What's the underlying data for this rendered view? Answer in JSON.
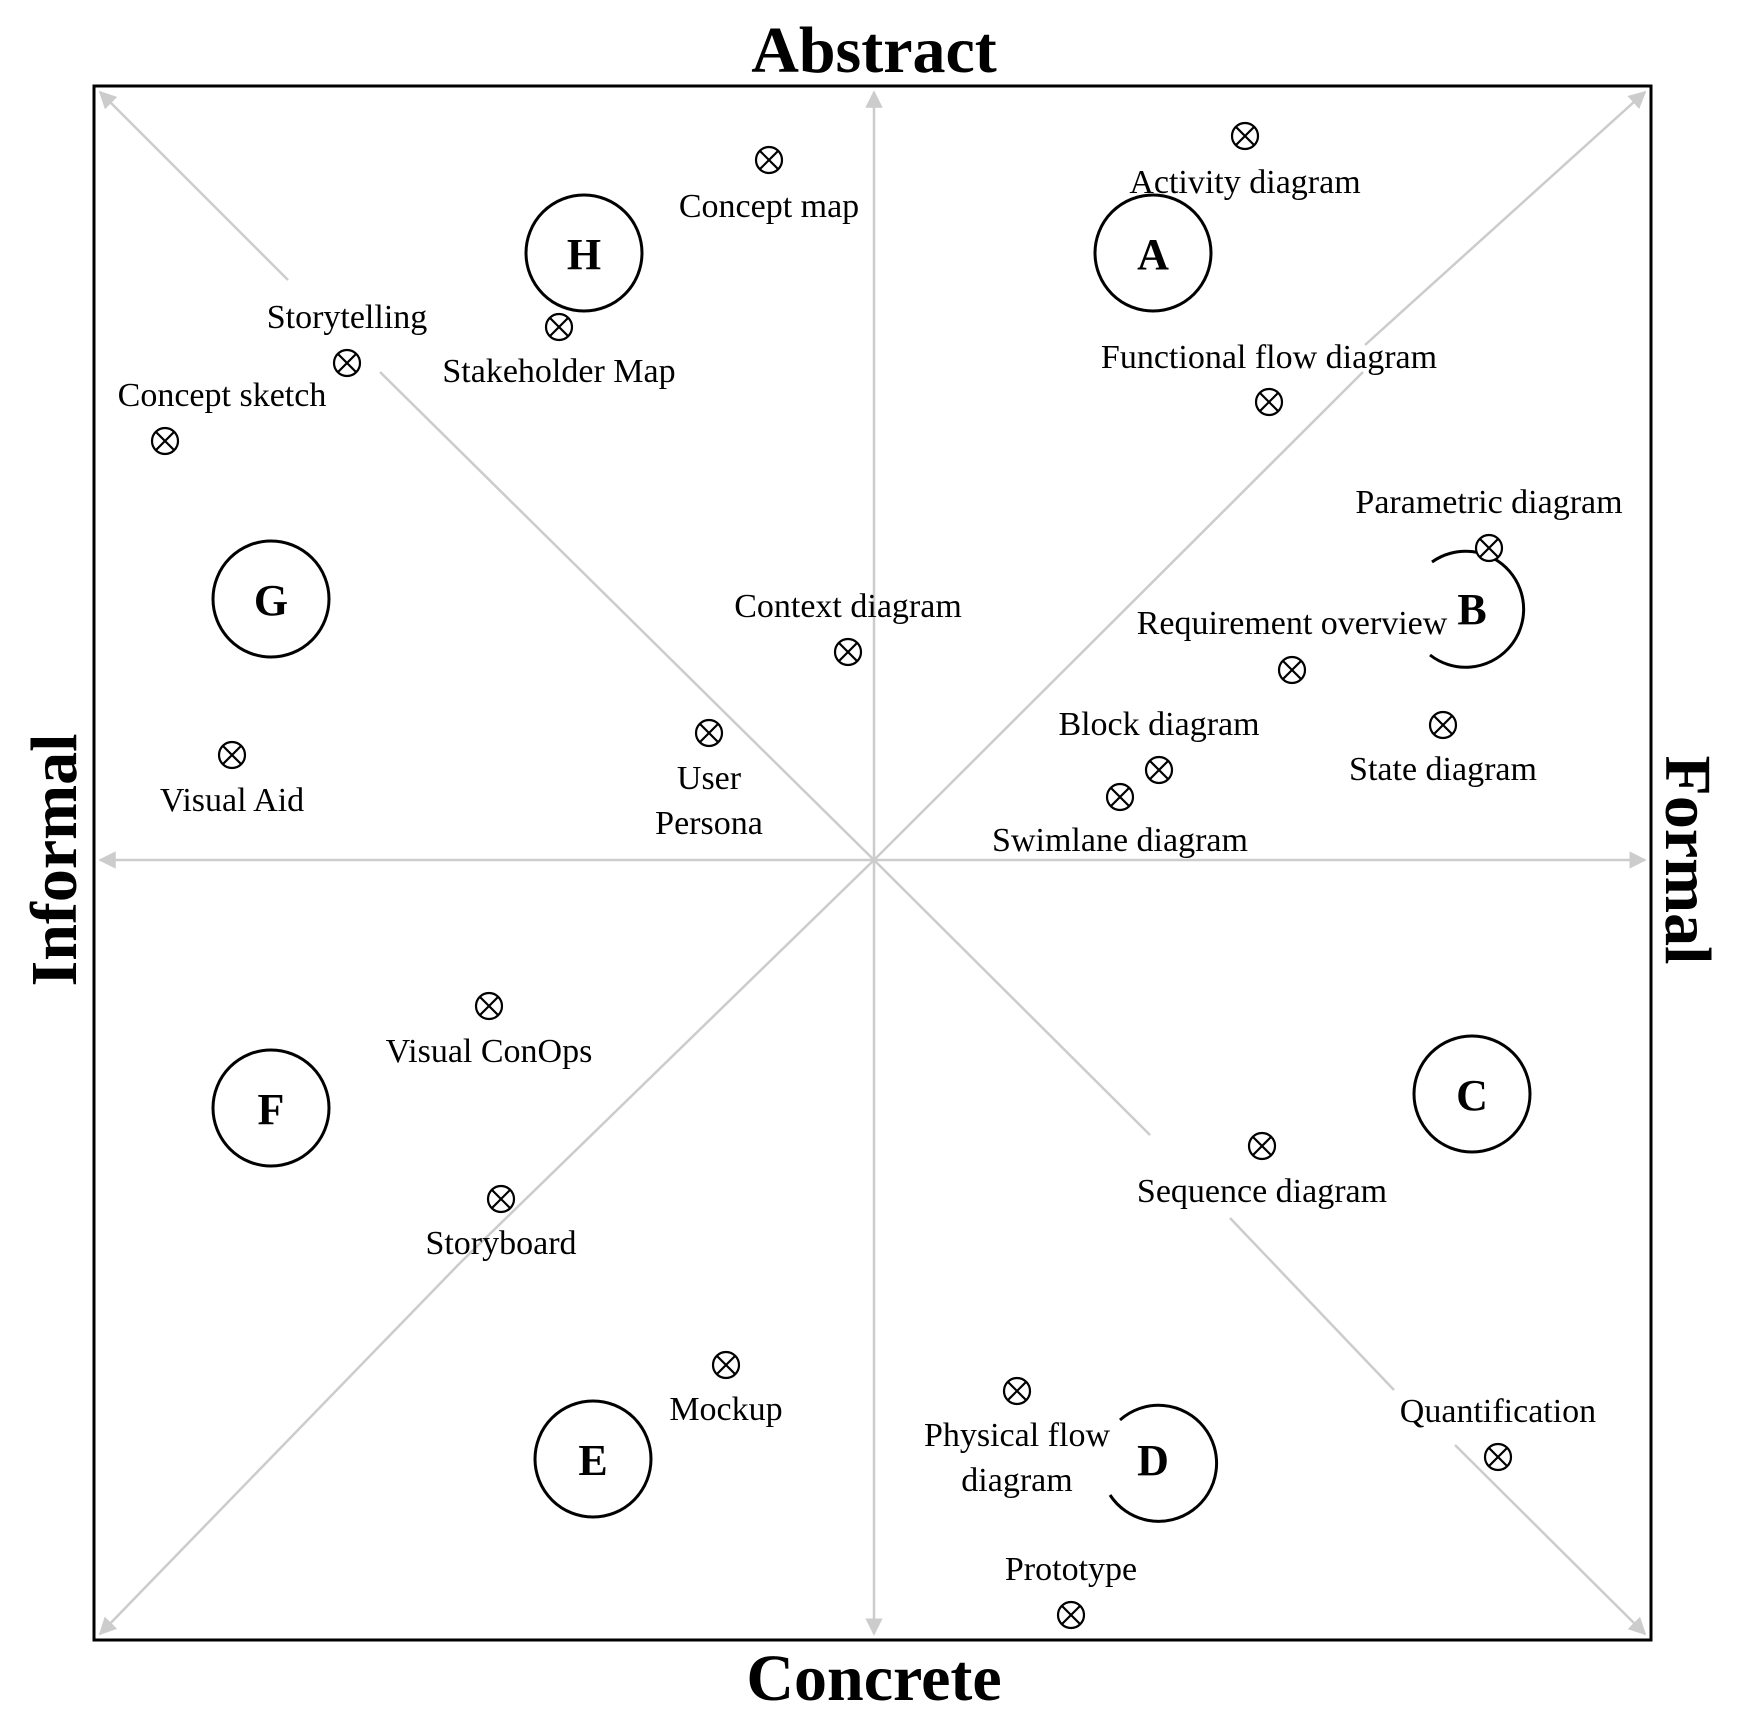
{
  "axes": {
    "top": "Abstract",
    "bottom": "Concrete",
    "left": "Informal",
    "right": "Formal"
  },
  "clusters": [
    {
      "id": "a",
      "letter": "A"
    },
    {
      "id": "b",
      "letter": "B"
    },
    {
      "id": "c",
      "letter": "C"
    },
    {
      "id": "d",
      "letter": "D"
    },
    {
      "id": "e",
      "letter": "E"
    },
    {
      "id": "f",
      "letter": "F"
    },
    {
      "id": "g",
      "letter": "G"
    },
    {
      "id": "h",
      "letter": "H"
    }
  ],
  "methods": [
    {
      "id": "concept-map",
      "lines": [
        "Concept map"
      ]
    },
    {
      "id": "activity-diagram",
      "lines": [
        "Activity diagram"
      ]
    },
    {
      "id": "storytelling",
      "lines": [
        "Storytelling"
      ]
    },
    {
      "id": "stakeholder-map",
      "lines": [
        "Stakeholder Map"
      ]
    },
    {
      "id": "concept-sketch",
      "lines": [
        "Concept sketch"
      ]
    },
    {
      "id": "functional-flow-diagram",
      "lines": [
        "Functional flow diagram"
      ]
    },
    {
      "id": "parametric-diagram",
      "lines": [
        "Parametric diagram"
      ]
    },
    {
      "id": "context-diagram",
      "lines": [
        "Context diagram"
      ]
    },
    {
      "id": "requirement-overview",
      "lines": [
        "Requirement overview"
      ]
    },
    {
      "id": "block-diagram",
      "lines": [
        "Block diagram"
      ]
    },
    {
      "id": "state-diagram",
      "lines": [
        "State diagram"
      ]
    },
    {
      "id": "swimlane-diagram",
      "lines": [
        "Swimlane diagram"
      ]
    },
    {
      "id": "user-persona",
      "lines": [
        "User",
        "Persona"
      ]
    },
    {
      "id": "visual-aid",
      "lines": [
        "Visual Aid"
      ]
    },
    {
      "id": "visual-conops",
      "lines": [
        "Visual ConOps"
      ]
    },
    {
      "id": "storyboard",
      "lines": [
        "Storyboard"
      ]
    },
    {
      "id": "sequence-diagram",
      "lines": [
        "Sequence diagram"
      ]
    },
    {
      "id": "mockup",
      "lines": [
        "Mockup"
      ]
    },
    {
      "id": "physical-flow-diagram",
      "lines": [
        "Physical flow",
        "diagram"
      ]
    },
    {
      "id": "quantification",
      "lines": [
        "Quantification"
      ]
    },
    {
      "id": "prototype",
      "lines": [
        "Prototype"
      ]
    }
  ]
}
